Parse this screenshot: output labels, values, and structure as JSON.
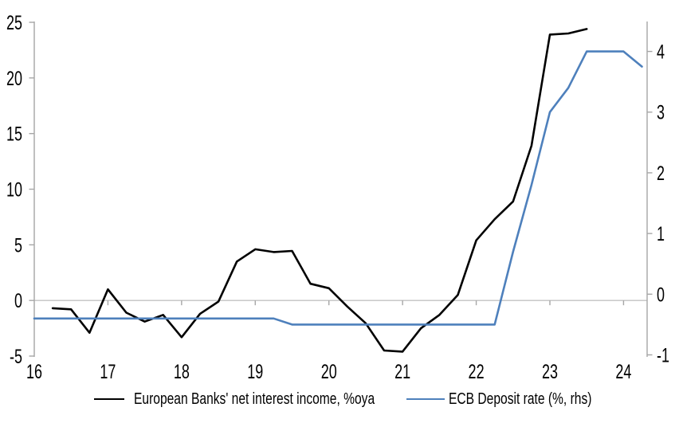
{
  "colors": {
    "background": "#ffffff",
    "axis": "#a6a6a6",
    "gridline": "#c3c3c3",
    "text": "#000000",
    "series_black": "#000000",
    "series_blue": "#4e80bc"
  },
  "chart_data": {
    "type": "line",
    "title": "",
    "xlabel": "",
    "ylabel_left": "",
    "ylabel_right": "",
    "grid": "zero-line-only",
    "legend_position": "bottom",
    "x_axis": {
      "range": [
        16,
        24.32
      ],
      "label_years": [
        16,
        17,
        18,
        19,
        20,
        21,
        22,
        23,
        24
      ],
      "tick_mark_years": [
        17,
        18,
        19,
        20,
        21,
        22,
        23,
        24
      ]
    },
    "y_axis_left": {
      "range": [
        -5,
        25
      ],
      "ticks": [
        -5,
        0,
        5,
        10,
        15,
        20,
        25
      ]
    },
    "y_axis_right": {
      "range": [
        -1.02,
        4.48
      ],
      "ticks": [
        -1,
        0,
        1,
        2,
        3,
        4
      ]
    },
    "series": [
      {
        "name": "European Banks' net interest income, %oya",
        "axis": "left",
        "color": "#000000",
        "x": [
          16.25,
          16.5,
          16.75,
          17.0,
          17.25,
          17.5,
          17.75,
          18.0,
          18.25,
          18.5,
          18.75,
          19.0,
          19.25,
          19.5,
          19.75,
          20.0,
          20.25,
          20.5,
          20.75,
          21.0,
          21.25,
          21.5,
          21.75,
          22.0,
          22.25,
          22.5,
          22.75,
          23.0,
          23.25,
          23.5
        ],
        "values": [
          -0.7,
          -0.8,
          -2.9,
          1.0,
          -1.1,
          -1.9,
          -1.3,
          -3.3,
          -1.2,
          -0.1,
          3.5,
          4.6,
          4.35,
          4.45,
          1.5,
          1.1,
          -0.55,
          -2.05,
          -4.5,
          -4.6,
          -2.5,
          -1.3,
          0.5,
          5.4,
          7.3,
          8.9,
          13.9,
          23.9,
          24.0,
          24.4
        ]
      },
      {
        "name": "ECB Deposit rate (%, rhs)",
        "axis": "right",
        "color": "#4e80bc",
        "x": [
          16.0,
          16.25,
          16.5,
          16.75,
          17.0,
          17.25,
          17.5,
          17.75,
          18.0,
          18.25,
          18.5,
          18.75,
          19.0,
          19.25,
          19.5,
          19.75,
          20.0,
          20.25,
          20.5,
          20.75,
          21.0,
          21.25,
          21.5,
          21.75,
          22.0,
          22.25,
          22.5,
          22.75,
          23.0,
          23.25,
          23.5,
          23.75,
          24.0,
          24.25
        ],
        "values": [
          -0.4,
          -0.4,
          -0.4,
          -0.4,
          -0.4,
          -0.4,
          -0.4,
          -0.4,
          -0.4,
          -0.4,
          -0.4,
          -0.4,
          -0.4,
          -0.4,
          -0.5,
          -0.5,
          -0.5,
          -0.5,
          -0.5,
          -0.5,
          -0.5,
          -0.5,
          -0.5,
          -0.5,
          -0.5,
          -0.5,
          0.7,
          1.8,
          3.0,
          3.4,
          4.0,
          4.0,
          4.0,
          3.75
        ]
      }
    ]
  }
}
